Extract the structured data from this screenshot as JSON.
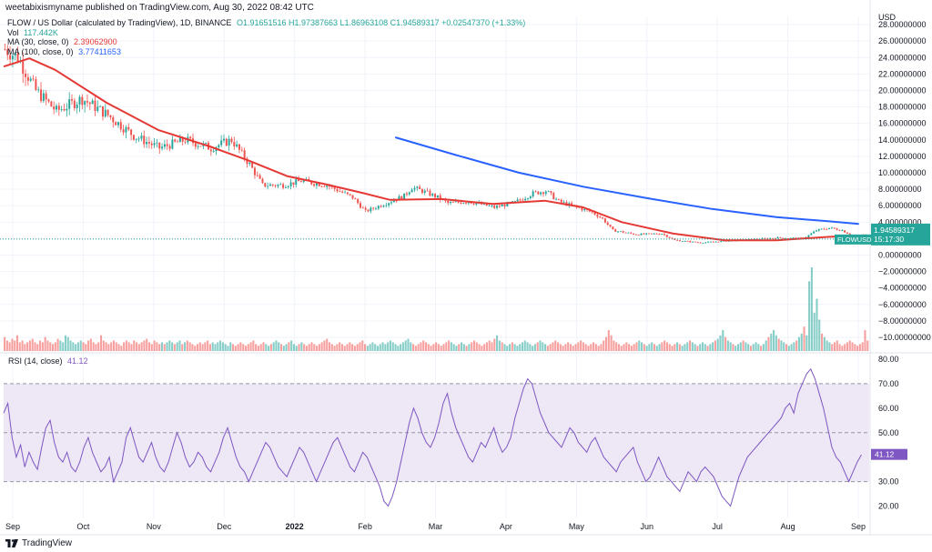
{
  "header": {
    "published": "weetabixismyname published on TradingView.com, Aug 30, 2022 08:42 UTC"
  },
  "legend": {
    "symbol": "FLOW / US Dollar (calculated by TradingView), 1D, BINANCE",
    "ohlc": "O1.91651516  H1.97387663  L1.86963108  C1.94589317  +0.02547370 (+1.33%)",
    "vol_label": "Vol",
    "vol_value": "117.442K",
    "ma30_label": "MA (30, close, 0)",
    "ma30_value": "2.39062900",
    "ma100_label": "MA (100, close, 0)",
    "ma100_value": "3.77411653"
  },
  "rsi_legend": {
    "label": "RSI (14, close)",
    "value": "41.12"
  },
  "footer": {
    "brand": "TradingView"
  },
  "colors": {
    "up": "#26a69a",
    "down": "#ef5350",
    "ma30": "#e53935",
    "ma100": "#2962ff",
    "rsi_line": "#7e57c2",
    "rsi_band": "#ede7f6",
    "grid": "#f0f3fa",
    "axis_text": "#131722",
    "price_label": "#26a69a",
    "dashed_line": "#9598a1"
  },
  "chart_data": [
    {
      "type": "candlestick",
      "title": "FLOW / US Dollar (calculated by TradingView), 1D, BINANCE",
      "price_axis_unit": "USD",
      "ylim": [
        -11,
        29
      ],
      "y_ticks": [
        "28.00000000",
        "26.00000000",
        "24.00000000",
        "22.00000000",
        "20.00000000",
        "18.00000000",
        "16.00000000",
        "14.00000000",
        "12.00000000",
        "10.00000000",
        "8.00000000",
        "6.00000000",
        "4.00000000",
        "2.00000000",
        "0.00000000",
        "−2.00000000",
        "−4.00000000",
        "−6.00000000",
        "−8.00000000",
        "−10.00000000"
      ],
      "y_tick_values": [
        28,
        26,
        24,
        22,
        20,
        18,
        16,
        14,
        12,
        10,
        8,
        6,
        4,
        2,
        0,
        -2,
        -4,
        -6,
        -8,
        -10
      ],
      "x_labels": [
        "Sep",
        "Oct",
        "Nov",
        "Dec",
        "2022",
        "Feb",
        "Mar",
        "Apr",
        "May",
        "Jun",
        "Jul",
        "Aug",
        "Sep"
      ],
      "last_price": "1.94589317",
      "last_price_symbol": "FLOWUSD",
      "countdown": "15:17:30",
      "price_path": [
        [
          0,
          25.0
        ],
        [
          5,
          24.0
        ],
        [
          12,
          20.0
        ],
        [
          20,
          17.5
        ],
        [
          30,
          19.0
        ],
        [
          40,
          17.0
        ],
        [
          50,
          14.5
        ],
        [
          60,
          13.0
        ],
        [
          70,
          14.0
        ],
        [
          80,
          13.0
        ],
        [
          88,
          14.0
        ],
        [
          95,
          11.0
        ],
        [
          100,
          8.5
        ],
        [
          108,
          8.5
        ],
        [
          115,
          9.0
        ],
        [
          125,
          8.5
        ],
        [
          135,
          7.0
        ],
        [
          140,
          5.3
        ],
        [
          148,
          6.3
        ],
        [
          155,
          7.2
        ],
        [
          158,
          8.2
        ],
        [
          162,
          7.8
        ],
        [
          168,
          7.0
        ],
        [
          172,
          6.3
        ],
        [
          180,
          6.5
        ],
        [
          190,
          5.8
        ],
        [
          198,
          6.4
        ],
        [
          205,
          7.5
        ],
        [
          210,
          7.8
        ],
        [
          215,
          6.5
        ],
        [
          222,
          5.8
        ],
        [
          228,
          5.2
        ],
        [
          232,
          4.4
        ],
        [
          236,
          3.0
        ],
        [
          245,
          2.5
        ],
        [
          255,
          2.6
        ],
        [
          260,
          1.8
        ],
        [
          270,
          1.5
        ],
        [
          280,
          1.7
        ],
        [
          290,
          1.9
        ],
        [
          300,
          2.1
        ],
        [
          310,
          2.0
        ],
        [
          315,
          3.0
        ],
        [
          320,
          3.3
        ],
        [
          325,
          3.0
        ],
        [
          328,
          2.5
        ],
        [
          332,
          2.1
        ],
        [
          335,
          1.95
        ]
      ],
      "ma30_path": [
        [
          0,
          22.9
        ],
        [
          10,
          23.9
        ],
        [
          20,
          22.5
        ],
        [
          40,
          18.5
        ],
        [
          60,
          15.2
        ],
        [
          80,
          13.2
        ],
        [
          95,
          11.5
        ],
        [
          110,
          9.6
        ],
        [
          125,
          8.6
        ],
        [
          140,
          7.5
        ],
        [
          150,
          6.7
        ],
        [
          170,
          6.8
        ],
        [
          190,
          6.2
        ],
        [
          210,
          6.6
        ],
        [
          225,
          5.8
        ],
        [
          240,
          4.0
        ],
        [
          260,
          2.6
        ],
        [
          280,
          1.8
        ],
        [
          300,
          1.8
        ],
        [
          320,
          2.2
        ],
        [
          335,
          2.39
        ]
      ],
      "ma100_path": [
        [
          152,
          14.3
        ],
        [
          175,
          12.2
        ],
        [
          200,
          10.0
        ],
        [
          225,
          8.3
        ],
        [
          250,
          6.9
        ],
        [
          275,
          5.6
        ],
        [
          300,
          4.6
        ],
        [
          320,
          4.1
        ],
        [
          332,
          3.77
        ]
      ]
    },
    {
      "type": "bar",
      "title": "Vol",
      "series": [
        {
          "name": "Vol",
          "values_relative": [
            8,
            6,
            5,
            7,
            6,
            9,
            5,
            6,
            4,
            5,
            6,
            7,
            5,
            4,
            6,
            5,
            8,
            6,
            5,
            4,
            5,
            7,
            6,
            5,
            9,
            8,
            6,
            5,
            4,
            5,
            6,
            5,
            4,
            6,
            7,
            5,
            4,
            5,
            9,
            6,
            5,
            4,
            5,
            6,
            5,
            4,
            3,
            5,
            6,
            5,
            4,
            6,
            5,
            4,
            5,
            6,
            7,
            5,
            4,
            6,
            5,
            4,
            5,
            4,
            5,
            6,
            5,
            4,
            5,
            6,
            4,
            5,
            6,
            5,
            4,
            3,
            4,
            5,
            4,
            5,
            6,
            4,
            5,
            4,
            5,
            6,
            5,
            4,
            3,
            5,
            4,
            3,
            4,
            5,
            4,
            3,
            4,
            5,
            6,
            4,
            3,
            4,
            5,
            4,
            3,
            4,
            5,
            6,
            5,
            4,
            3,
            4,
            5,
            6,
            4,
            3,
            4,
            5,
            4,
            3,
            4,
            5,
            4,
            3,
            4,
            5,
            6,
            7,
            5,
            4,
            3,
            4,
            5,
            4,
            3,
            4,
            5,
            4,
            3,
            4,
            5,
            6,
            4,
            3,
            4,
            5,
            4,
            3,
            4,
            5,
            4,
            5,
            6,
            5,
            4,
            3,
            4,
            5,
            6,
            7,
            5,
            4,
            3,
            4,
            5,
            6,
            5,
            4,
            3,
            4,
            5,
            4,
            3,
            4,
            5,
            6,
            5,
            4,
            3,
            4,
            5,
            4,
            3,
            4,
            5,
            6,
            5,
            4,
            3,
            4,
            5,
            6,
            5,
            7,
            9,
            6,
            5,
            4,
            3,
            4,
            5,
            4,
            3,
            4,
            5,
            6,
            5,
            4,
            3,
            4,
            5,
            6,
            5,
            4,
            3,
            4,
            5,
            6,
            5,
            4,
            3,
            4,
            5,
            4,
            3,
            4,
            5,
            6,
            5,
            4,
            3,
            4,
            5,
            4,
            3,
            4,
            6,
            8,
            12,
            9,
            6,
            5,
            4,
            3,
            4,
            5,
            4,
            3,
            4,
            5,
            6,
            5,
            4,
            3,
            4,
            5,
            4,
            3,
            4,
            5,
            6,
            5,
            4,
            3,
            4,
            5,
            4,
            3,
            4,
            5,
            6,
            5,
            4,
            3,
            4,
            5,
            4,
            3,
            4,
            5,
            6,
            7,
            9,
            12,
            8,
            6,
            5,
            4,
            3,
            4,
            5,
            6,
            5,
            4,
            3,
            4,
            5,
            4,
            3,
            4,
            6,
            8,
            10,
            12,
            9,
            7,
            6,
            5,
            4,
            3,
            4,
            5,
            6,
            8,
            10,
            14,
            9,
            40,
            48,
            22,
            30,
            18,
            10,
            8,
            6,
            5,
            4,
            5,
            6,
            4,
            3,
            4,
            5,
            6,
            5,
            4,
            3,
            4,
            5,
            12,
            6
          ]
        }
      ]
    },
    {
      "type": "line",
      "title": "RSI (14, close)",
      "ylim": [
        15,
        80
      ],
      "y_ticks": [
        "80.00",
        "70.00",
        "60.00",
        "50.00",
        "40.00",
        "30.00",
        "20.00"
      ],
      "y_tick_values": [
        80,
        70,
        60,
        50,
        40,
        30,
        20
      ],
      "band": [
        30,
        70
      ],
      "midline": 50,
      "last_value": 41.12,
      "series": [
        {
          "name": "RSI (14, close)",
          "values": [
            58,
            62,
            48,
            40,
            45,
            36,
            42,
            38,
            35,
            44,
            52,
            55,
            46,
            40,
            38,
            42,
            36,
            34,
            38,
            44,
            48,
            42,
            38,
            34,
            36,
            40,
            30,
            34,
            38,
            48,
            52,
            46,
            40,
            38,
            42,
            46,
            40,
            36,
            34,
            38,
            44,
            50,
            46,
            40,
            36,
            38,
            42,
            40,
            36,
            34,
            38,
            42,
            48,
            52,
            46,
            40,
            36,
            34,
            30,
            34,
            38,
            42,
            46,
            44,
            40,
            36,
            34,
            32,
            36,
            40,
            44,
            42,
            38,
            34,
            30,
            34,
            38,
            42,
            46,
            48,
            44,
            40,
            36,
            34,
            38,
            42,
            40,
            36,
            32,
            28,
            22,
            20,
            24,
            30,
            38,
            46,
            54,
            60,
            56,
            50,
            46,
            44,
            48,
            54,
            62,
            66,
            58,
            52,
            48,
            44,
            40,
            38,
            42,
            46,
            44,
            48,
            52,
            46,
            42,
            44,
            48,
            56,
            62,
            68,
            72,
            70,
            64,
            58,
            54,
            50,
            48,
            46,
            44,
            48,
            52,
            50,
            46,
            44,
            42,
            46,
            48,
            44,
            40,
            38,
            36,
            34,
            38,
            40,
            42,
            44,
            38,
            34,
            30,
            32,
            36,
            40,
            36,
            32,
            30,
            28,
            26,
            30,
            34,
            32,
            30,
            34,
            36,
            34,
            32,
            28,
            24,
            22,
            20,
            26,
            32,
            36,
            40,
            42,
            44,
            46,
            48,
            50,
            52,
            54,
            56,
            60,
            62,
            58,
            66,
            70,
            74,
            76,
            72,
            66,
            60,
            52,
            44,
            40,
            38,
            34,
            30,
            34,
            38,
            41
          ]
        }
      ]
    }
  ]
}
